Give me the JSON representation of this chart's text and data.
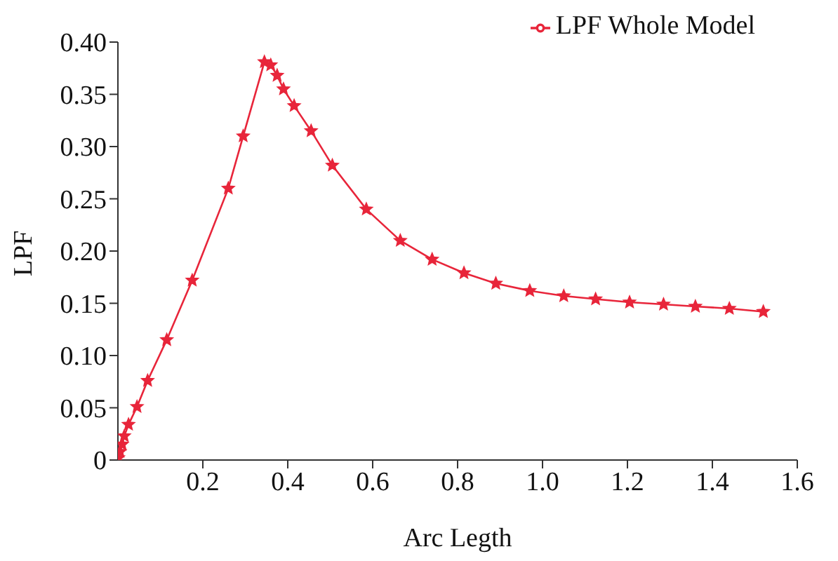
{
  "chart_data": {
    "type": "line",
    "xlabel": "Arc Legth",
    "ylabel": "LPF",
    "x": [
      0.001,
      0.005,
      0.01,
      0.015,
      0.025,
      0.045,
      0.07,
      0.115,
      0.175,
      0.26,
      0.295,
      0.345,
      0.36,
      0.375,
      0.39,
      0.415,
      0.455,
      0.505,
      0.585,
      0.665,
      0.74,
      0.815,
      0.89,
      0.97,
      1.05,
      1.125,
      1.205,
      1.285,
      1.36,
      1.44,
      1.52
    ],
    "series": [
      {
        "name": "LPF Whole Model",
        "color": "#e8253a",
        "values": [
          0.002,
          0.008,
          0.015,
          0.023,
          0.034,
          0.051,
          0.076,
          0.115,
          0.172,
          0.26,
          0.31,
          0.381,
          0.378,
          0.368,
          0.355,
          0.339,
          0.315,
          0.282,
          0.24,
          0.21,
          0.192,
          0.179,
          0.169,
          0.162,
          0.157,
          0.154,
          0.151,
          0.149,
          0.147,
          0.145,
          0.142
        ]
      }
    ],
    "xlim": [
      0,
      1.6
    ],
    "xticks": [
      0.2,
      0.4,
      0.6,
      0.8,
      {
        "value": 1,
        "label": "1.0"
      },
      1.2,
      1.4,
      1.6
    ],
    "ylim": [
      0,
      0.4
    ],
    "yticks": [
      0,
      {
        "value": 0.05,
        "label": "0.05"
      },
      {
        "value": 0.1,
        "label": "0.10"
      },
      {
        "value": 0.15,
        "label": "0.15"
      },
      {
        "value": 0.2,
        "label": "0.20"
      },
      {
        "value": 0.25,
        "label": "0.25"
      },
      {
        "value": 0.3,
        "label": "0.30"
      },
      {
        "value": 0.35,
        "label": "0.35"
      },
      {
        "value": 0.4,
        "label": "0.40"
      }
    ],
    "grid": false,
    "legend": "top right",
    "marker": "star",
    "line_style": "solid"
  }
}
